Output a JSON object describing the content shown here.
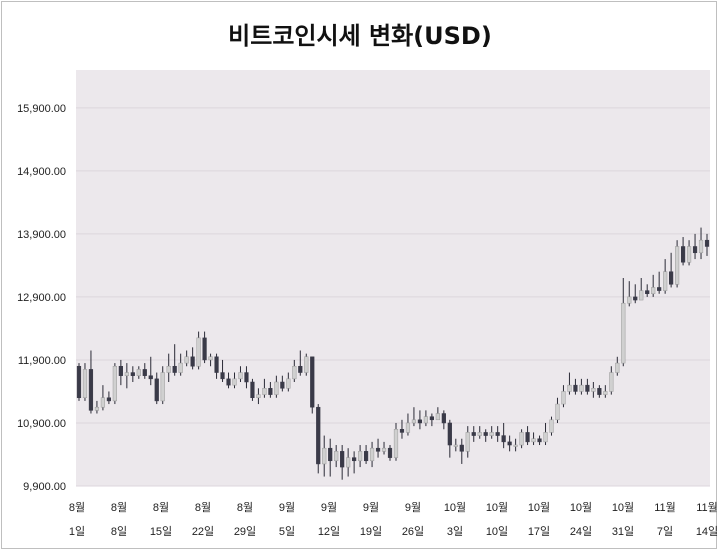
{
  "chart_data": {
    "type": "candlestick",
    "title": "비트코인시세 변화(USD)",
    "ylim": [
      9900,
      16500
    ],
    "y_ticks": [
      "9,900.00",
      "10,900.00",
      "11,900.00",
      "12,900.00",
      "13,900.00",
      "14,900.00",
      "15,900.00"
    ],
    "y_tick_values": [
      9900,
      10900,
      11900,
      12900,
      13900,
      14900,
      15900
    ],
    "x_ticks": [
      {
        "month": "8월",
        "day": "1일",
        "index": 0
      },
      {
        "month": "8월",
        "day": "8일",
        "index": 7
      },
      {
        "month": "8월",
        "day": "15일",
        "index": 14
      },
      {
        "month": "8월",
        "day": "22일",
        "index": 21
      },
      {
        "month": "8월",
        "day": "29일",
        "index": 28
      },
      {
        "month": "9월",
        "day": "5일",
        "index": 35
      },
      {
        "month": "9월",
        "day": "12일",
        "index": 42
      },
      {
        "month": "9월",
        "day": "19일",
        "index": 49
      },
      {
        "month": "9월",
        "day": "26일",
        "index": 56
      },
      {
        "month": "10월",
        "day": "3일",
        "index": 63
      },
      {
        "month": "10월",
        "day": "10일",
        "index": 70
      },
      {
        "month": "10월",
        "day": "17일",
        "index": 77
      },
      {
        "month": "10월",
        "day": "24일",
        "index": 84
      },
      {
        "month": "10월",
        "day": "31일",
        "index": 91
      },
      {
        "month": "11월",
        "day": "7일",
        "index": 98
      },
      {
        "month": "11월",
        "day": "14일",
        "index": 105
      }
    ],
    "grid": true,
    "up_color": "#d0d0d0",
    "down_color": "#3a3a48",
    "candles": [
      [
        11800,
        11300,
        11850,
        11250
      ],
      [
        11300,
        11750,
        11850,
        11250
      ],
      [
        11750,
        11100,
        12050,
        11050
      ],
      [
        11100,
        11150,
        11250,
        11050
      ],
      [
        11150,
        11300,
        11500,
        11100
      ],
      [
        11300,
        11250,
        11400,
        11200
      ],
      [
        11250,
        11800,
        11850,
        11200
      ],
      [
        11800,
        11650,
        11900,
        11500
      ],
      [
        11650,
        11700,
        11850,
        11450
      ],
      [
        11700,
        11650,
        11800,
        11550
      ],
      [
        11650,
        11750,
        11800,
        11600
      ],
      [
        11750,
        11650,
        11850,
        11600
      ],
      [
        11650,
        11600,
        11950,
        11500
      ],
      [
        11600,
        11250,
        11700,
        11200
      ],
      [
        11250,
        11700,
        11800,
        11200
      ],
      [
        11700,
        11800,
        12000,
        11550
      ],
      [
        11800,
        11700,
        12150,
        11650
      ],
      [
        11700,
        11850,
        12000,
        11650
      ],
      [
        11850,
        11950,
        12050,
        11800
      ],
      [
        11950,
        11800,
        12100,
        11750
      ],
      [
        11800,
        12250,
        12350,
        11750
      ],
      [
        12250,
        11900,
        12350,
        11850
      ],
      [
        11900,
        11950,
        12000,
        11800
      ],
      [
        11950,
        11700,
        12000,
        11600
      ],
      [
        11700,
        11600,
        11900,
        11550
      ],
      [
        11600,
        11500,
        11700,
        11450
      ],
      [
        11500,
        11600,
        11700,
        11450
      ],
      [
        11600,
        11700,
        11800,
        11550
      ],
      [
        11700,
        11550,
        11800,
        11450
      ],
      [
        11550,
        11300,
        11600,
        11250
      ],
      [
        11300,
        11350,
        11450,
        11200
      ],
      [
        11350,
        11450,
        11600,
        11300
      ],
      [
        11450,
        11350,
        11550,
        11300
      ],
      [
        11350,
        11550,
        11650,
        11300
      ],
      [
        11550,
        11450,
        11650,
        11400
      ],
      [
        11450,
        11600,
        11700,
        11400
      ],
      [
        11600,
        11800,
        11900,
        11550
      ],
      [
        11800,
        11700,
        12050,
        11650
      ],
      [
        11700,
        11950,
        12000,
        11650
      ],
      [
        11950,
        11150,
        11950,
        11050
      ],
      [
        11150,
        10250,
        11200,
        10100
      ],
      [
        10250,
        10500,
        10700,
        10050
      ],
      [
        10500,
        10300,
        10650,
        10050
      ],
      [
        10300,
        10450,
        10550,
        10200
      ],
      [
        10450,
        10200,
        10550,
        10000
      ],
      [
        10200,
        10350,
        10500,
        10050
      ],
      [
        10350,
        10300,
        10450,
        10100
      ],
      [
        10300,
        10450,
        10550,
        10200
      ],
      [
        10450,
        10300,
        10550,
        10250
      ],
      [
        10300,
        10500,
        10600,
        10200
      ],
      [
        10500,
        10450,
        10650,
        10350
      ],
      [
        10450,
        10500,
        10600,
        10400
      ],
      [
        10500,
        10350,
        10550,
        10300
      ],
      [
        10350,
        10800,
        10900,
        10300
      ],
      [
        10800,
        10750,
        10950,
        10650
      ],
      [
        10750,
        10900,
        11050,
        10700
      ],
      [
        10900,
        10950,
        11150,
        10850
      ],
      [
        10950,
        10900,
        11100,
        10800
      ],
      [
        10900,
        11000,
        11100,
        10850
      ],
      [
        11000,
        10950,
        11050,
        10850
      ],
      [
        10950,
        11050,
        11150,
        10950
      ],
      [
        11050,
        10900,
        11100,
        10800
      ],
      [
        10900,
        10550,
        10950,
        10350
      ],
      [
        10550,
        10550,
        10650,
        10450
      ],
      [
        10550,
        10450,
        10650,
        10250
      ],
      [
        10450,
        10750,
        10850,
        10350
      ],
      [
        10750,
        10700,
        10850,
        10600
      ],
      [
        10700,
        10750,
        10850,
        10650
      ],
      [
        10750,
        10700,
        10800,
        10600
      ],
      [
        10700,
        10750,
        10850,
        10650
      ],
      [
        10750,
        10700,
        10850,
        10600
      ],
      [
        10700,
        10600,
        10900,
        10500
      ],
      [
        10600,
        10550,
        10700,
        10450
      ],
      [
        10550,
        10550,
        10650,
        10450
      ],
      [
        10550,
        10750,
        10800,
        10500
      ],
      [
        10750,
        10600,
        10850,
        10550
      ],
      [
        10600,
        10650,
        10750,
        10550
      ],
      [
        10650,
        10600,
        10700,
        10550
      ],
      [
        10600,
        10750,
        10900,
        10550
      ],
      [
        10750,
        10950,
        11000,
        10700
      ],
      [
        10950,
        11200,
        11300,
        10900
      ],
      [
        11200,
        11400,
        11500,
        11150
      ],
      [
        11400,
        11500,
        11700,
        11350
      ],
      [
        11500,
        11400,
        11600,
        11350
      ],
      [
        11400,
        11500,
        11600,
        11350
      ],
      [
        11500,
        11400,
        11600,
        11350
      ],
      [
        11400,
        11450,
        11550,
        11300
      ],
      [
        11450,
        11350,
        11500,
        11300
      ],
      [
        11350,
        11400,
        11500,
        11300
      ],
      [
        11400,
        11700,
        11800,
        11350
      ],
      [
        11700,
        11850,
        11950,
        11650
      ],
      [
        11850,
        12800,
        13200,
        11800
      ]
    ]
  }
}
